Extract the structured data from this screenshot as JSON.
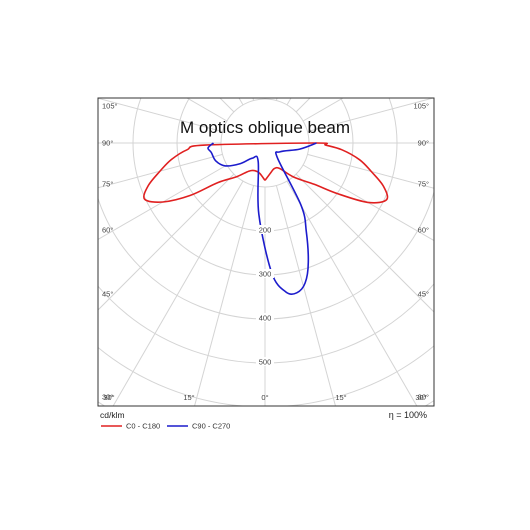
{
  "chart_data": {
    "type": "polar",
    "title": "M optics oblique beam",
    "unit": "cd/klm",
    "efficiency": "η = 100%",
    "radial_ticks": [
      "200",
      "300",
      "400",
      "500"
    ],
    "angle_labels": {
      "left": [
        "105°",
        "90°",
        "75°",
        "60°",
        "45°",
        "30°"
      ],
      "right": [
        "105°",
        "90°",
        "75°",
        "60°",
        "45°",
        "30°"
      ],
      "bottom": [
        "30°",
        "15°",
        "0°",
        "15°",
        "30°"
      ]
    },
    "series": [
      {
        "name": "C0 - C180",
        "color": "#e02020",
        "points": [
          {
            "angle": 0,
            "value": 85
          },
          {
            "angle": 10,
            "value": 70
          },
          {
            "angle": 20,
            "value": 62
          },
          {
            "angle": 30,
            "value": 67
          },
          {
            "angle": 40,
            "value": 101
          },
          {
            "angle": 50,
            "value": 146
          },
          {
            "angle": 55,
            "value": 200
          },
          {
            "angle": 60,
            "value": 270
          },
          {
            "angle": 65,
            "value": 305
          },
          {
            "angle": 70,
            "value": 286
          },
          {
            "angle": 75,
            "value": 250
          },
          {
            "angle": 80,
            "value": 218
          },
          {
            "angle": 85,
            "value": 175
          },
          {
            "angle": 88,
            "value": 138
          },
          {
            "angle": 90,
            "value": 117
          },
          {
            "angle": -88,
            "value": 136
          },
          {
            "angle": -85,
            "value": 178
          },
          {
            "angle": -80,
            "value": 216
          },
          {
            "angle": -75,
            "value": 247
          },
          {
            "angle": -70,
            "value": 282
          },
          {
            "angle": -65,
            "value": 302
          },
          {
            "angle": -60,
            "value": 268
          },
          {
            "angle": -55,
            "value": 208
          },
          {
            "angle": -50,
            "value": 140
          },
          {
            "angle": -40,
            "value": 100
          },
          {
            "angle": -30,
            "value": 74
          },
          {
            "angle": -20,
            "value": 67
          },
          {
            "angle": -10,
            "value": 70
          },
          {
            "angle": 0,
            "value": 85
          }
        ]
      },
      {
        "name": "C90 - C270",
        "color": "#1c1ccc",
        "points": [
          {
            "angle": 90,
            "value": 117
          },
          {
            "angle": 80,
            "value": 80
          },
          {
            "angle": 60,
            "value": 40
          },
          {
            "angle": 40,
            "value": 44
          },
          {
            "angle": 30,
            "value": 165
          },
          {
            "angle": 25,
            "value": 222
          },
          {
            "angle": 20,
            "value": 288
          },
          {
            "angle": 16,
            "value": 331
          },
          {
            "angle": 12,
            "value": 348
          },
          {
            "angle": 8,
            "value": 342
          },
          {
            "angle": 3,
            "value": 296
          },
          {
            "angle": -5,
            "value": 162
          },
          {
            "angle": -20,
            "value": 45
          },
          {
            "angle": -40,
            "value": 45
          },
          {
            "angle": -50,
            "value": 73
          },
          {
            "angle": -60,
            "value": 104
          },
          {
            "angle": -70,
            "value": 119
          },
          {
            "angle": -80,
            "value": 124
          },
          {
            "angle": -85,
            "value": 130
          },
          {
            "angle": -90,
            "value": 117
          }
        ]
      }
    ]
  }
}
